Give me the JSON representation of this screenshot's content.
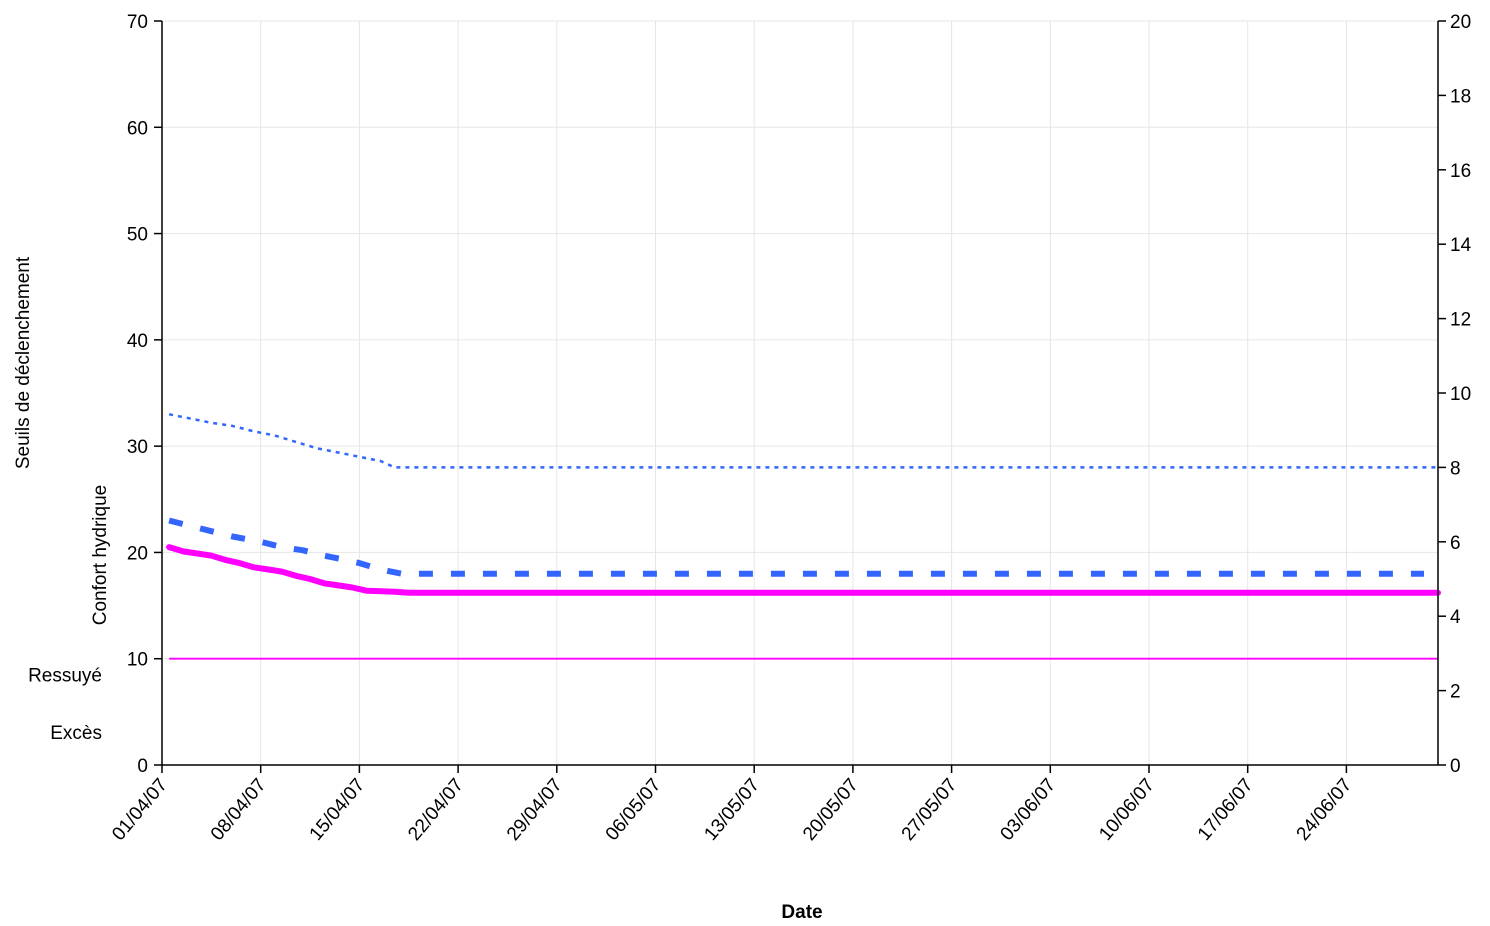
{
  "chart_data": {
    "type": "line",
    "xlabel": "Date",
    "ylabel_left_outer": "Seuils de déclenchement",
    "ylabel_left_inner": "Confort hydrique",
    "zone_labels": [
      {
        "text": "Ressuyé",
        "y": 8.5
      },
      {
        "text": "Excès",
        "y": 3.1
      }
    ],
    "x_tick_labels": [
      "01/04/07",
      "08/04/07",
      "15/04/07",
      "22/04/07",
      "29/04/07",
      "06/05/07",
      "13/05/07",
      "20/05/07",
      "27/05/07",
      "03/06/07",
      "10/06/07",
      "17/06/07",
      "24/06/07"
    ],
    "x_start_day": 0,
    "x_end_day": 90.5,
    "y_left": {
      "min": 0,
      "max": 70,
      "ticks": [
        0,
        10,
        20,
        30,
        40,
        50,
        60,
        70
      ]
    },
    "y_right": {
      "min": 0,
      "max": 20,
      "ticks": [
        0,
        2,
        4,
        6,
        8,
        10,
        12,
        14,
        16,
        18,
        20
      ]
    },
    "grid": true,
    "legend": "none",
    "series": [
      {
        "style": "dotted-thin",
        "color": "#3366ff",
        "points": [
          [
            0.5,
            33
          ],
          [
            2,
            32.6
          ],
          [
            3.5,
            32.2
          ],
          [
            5,
            31.9
          ],
          [
            6.5,
            31.4
          ],
          [
            8,
            31
          ],
          [
            9.5,
            30.4
          ],
          [
            11,
            29.8
          ],
          [
            12.5,
            29.4
          ],
          [
            14,
            29
          ],
          [
            15.5,
            28.6
          ],
          [
            16.5,
            28
          ],
          [
            18,
            28
          ],
          [
            30,
            28
          ],
          [
            50,
            28
          ],
          [
            70,
            28
          ],
          [
            90.5,
            28
          ]
        ]
      },
      {
        "style": "dashed-thick",
        "color": "#3366ff",
        "points": [
          [
            0.5,
            23
          ],
          [
            2,
            22.5
          ],
          [
            3.5,
            22
          ],
          [
            5,
            21.5
          ],
          [
            7,
            21
          ],
          [
            8.5,
            20.5
          ],
          [
            10,
            20.2
          ],
          [
            11.5,
            19.7
          ],
          [
            13,
            19.3
          ],
          [
            14,
            19
          ],
          [
            15.5,
            18.4
          ],
          [
            17,
            18
          ],
          [
            20,
            18
          ],
          [
            50,
            18
          ],
          [
            89.5,
            18
          ]
        ]
      },
      {
        "style": "solid-thick",
        "color": "#ff00ff",
        "points": [
          [
            0.5,
            20.5
          ],
          [
            1.5,
            20.1
          ],
          [
            2.5,
            19.9
          ],
          [
            3.5,
            19.7
          ],
          [
            4.5,
            19.3
          ],
          [
            5.5,
            19
          ],
          [
            6.5,
            18.6
          ],
          [
            7.5,
            18.4
          ],
          [
            8.5,
            18.2
          ],
          [
            9.5,
            17.8
          ],
          [
            10.5,
            17.5
          ],
          [
            11.5,
            17.1
          ],
          [
            12.5,
            16.9
          ],
          [
            13.5,
            16.7
          ],
          [
            14.5,
            16.4
          ],
          [
            16.5,
            16.3
          ],
          [
            17.5,
            16.2
          ],
          [
            30,
            16.2
          ],
          [
            60,
            16.2
          ],
          [
            90.5,
            16.2
          ]
        ]
      },
      {
        "style": "solid-thin",
        "color": "#ff00ff",
        "points": [
          [
            0.5,
            10
          ],
          [
            90.5,
            10
          ]
        ]
      }
    ]
  }
}
